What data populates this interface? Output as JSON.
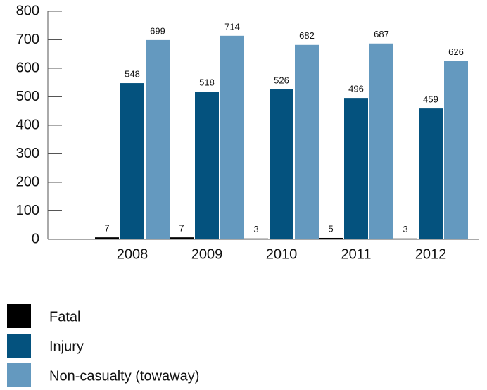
{
  "chart_data": {
    "type": "bar",
    "categories": [
      "2008",
      "2009",
      "2010",
      "2011",
      "2012"
    ],
    "series": [
      {
        "name": "Fatal",
        "color": "#000000",
        "values": [
          7,
          7,
          3,
          5,
          3
        ]
      },
      {
        "name": "Injury",
        "color": "#04527e",
        "values": [
          548,
          518,
          526,
          496,
          459
        ]
      },
      {
        "name": "Non-casualty (towaway)",
        "color": "#6499bf",
        "values": [
          699,
          714,
          682,
          687,
          626
        ]
      }
    ],
    "ylim": [
      0,
      800
    ],
    "yticks": [
      0,
      100,
      200,
      300,
      400,
      500,
      600,
      700,
      800
    ]
  }
}
